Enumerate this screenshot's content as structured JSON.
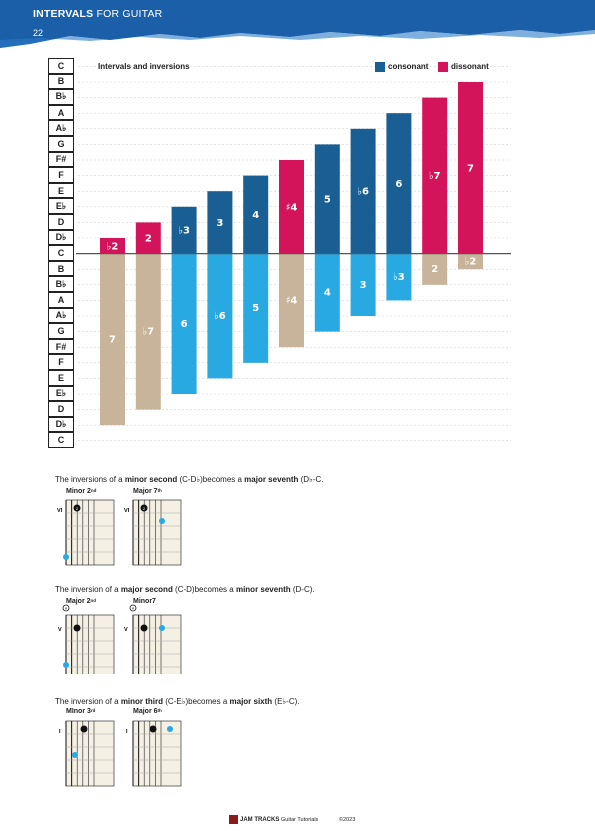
{
  "header": {
    "title_bold": "INTERVALS",
    "title_thin": " FOR GUITAR",
    "page_number": "22",
    "colors": {
      "band": "#1a5fa8",
      "accent": "#2a7ac8"
    }
  },
  "chart": {
    "title": "Intervals and inversions",
    "legend": [
      {
        "label": "consonant",
        "color": "#1a5f94"
      },
      {
        "label": "dissonant",
        "color": "#d4145a"
      }
    ]
  },
  "note_rows": [
    "C",
    "B",
    "B♭",
    "A",
    "A♭",
    "G",
    "F#",
    "F",
    "E",
    "E♭",
    "D",
    "D♭",
    "C",
    "B",
    "B♭",
    "A",
    "A♭",
    "G",
    "F#",
    "F",
    "E",
    "E♭",
    "D",
    "D♭",
    "C"
  ],
  "chart_data": {
    "type": "bar",
    "title": "Intervals and inversions",
    "categories": [
      "♭2",
      "2",
      "♭3",
      "3",
      "4",
      "♯4",
      "5",
      "♭6",
      "6",
      "♭7",
      "7"
    ],
    "series": [
      {
        "name": "",
        "values": [
          1,
          2,
          3,
          4,
          5,
          6,
          7,
          8,
          9,
          10,
          11
        ],
        "labels": [
          "♭2",
          "2",
          "♭3",
          "3",
          "4",
          "♯4",
          "5",
          "♭6",
          "6",
          "♭7",
          "7"
        ],
        "colors": [
          "#d4145a",
          "#d4145a",
          "#1a5f94",
          "#1a5f94",
          "#1a5f94",
          "#d4145a",
          "#1a5f94",
          "#1a5f94",
          "#1a5f94",
          "#d4145a",
          "#d4145a"
        ]
      },
      {
        "name": "",
        "values": [
          -11,
          -10,
          -9,
          -8,
          -7,
          -6,
          -5,
          -4,
          -3,
          -2,
          -1
        ],
        "labels": [
          "7",
          "♭7",
          "6",
          "♭6",
          "5",
          "♯4",
          "4",
          "3",
          "♭3",
          "2",
          "♭2"
        ],
        "colors": [
          "#c8b49a",
          "#c8b49a",
          "#29a9e1",
          "#29a9e1",
          "#29a9e1",
          "#c8b49a",
          "#29a9e1",
          "#29a9e1",
          "#29a9e1",
          "#c8b49a",
          "#c8b49a"
        ]
      }
    ],
    "ylim": [
      -12,
      12
    ]
  },
  "sections": [
    {
      "pre": "The inversions of a ",
      "i1": "minor second",
      "mid": " (C-D♭)becomes a ",
      "i2": "major seventh",
      "post": " (D♭-C.",
      "d1": {
        "name": "Minor 2",
        "sup": "nd",
        "pos": "VI"
      },
      "d2": {
        "name": "Major 7",
        "sup": "th",
        "pos": "VI"
      }
    },
    {
      "pre": "The inversion of a ",
      "i1": "major second",
      "mid": " (C-D)becomes a ",
      "i2": "minor seventh",
      "post": " (D-C).",
      "d1": {
        "name": "Major 2",
        "sup": "nd",
        "pos": "V"
      },
      "d2": {
        "name": "Minor7",
        "sup": "th",
        "pos": "V"
      }
    },
    {
      "pre": "The inversion of a ",
      "i1": "minor third",
      "mid": " (C-E♭)becomes a ",
      "i2": "major sixth",
      "post": " (E♭-C).",
      "d1": {
        "name": "MInor 3",
        "sup": "rd",
        "pos": "I"
      },
      "d2": {
        "name": "Major 6",
        "sup": "th",
        "pos": "I"
      }
    }
  ],
  "footer": {
    "logo": "JAM TRACKS",
    "brand": "Guitar Tutorials",
    "copyright": "©2023"
  }
}
